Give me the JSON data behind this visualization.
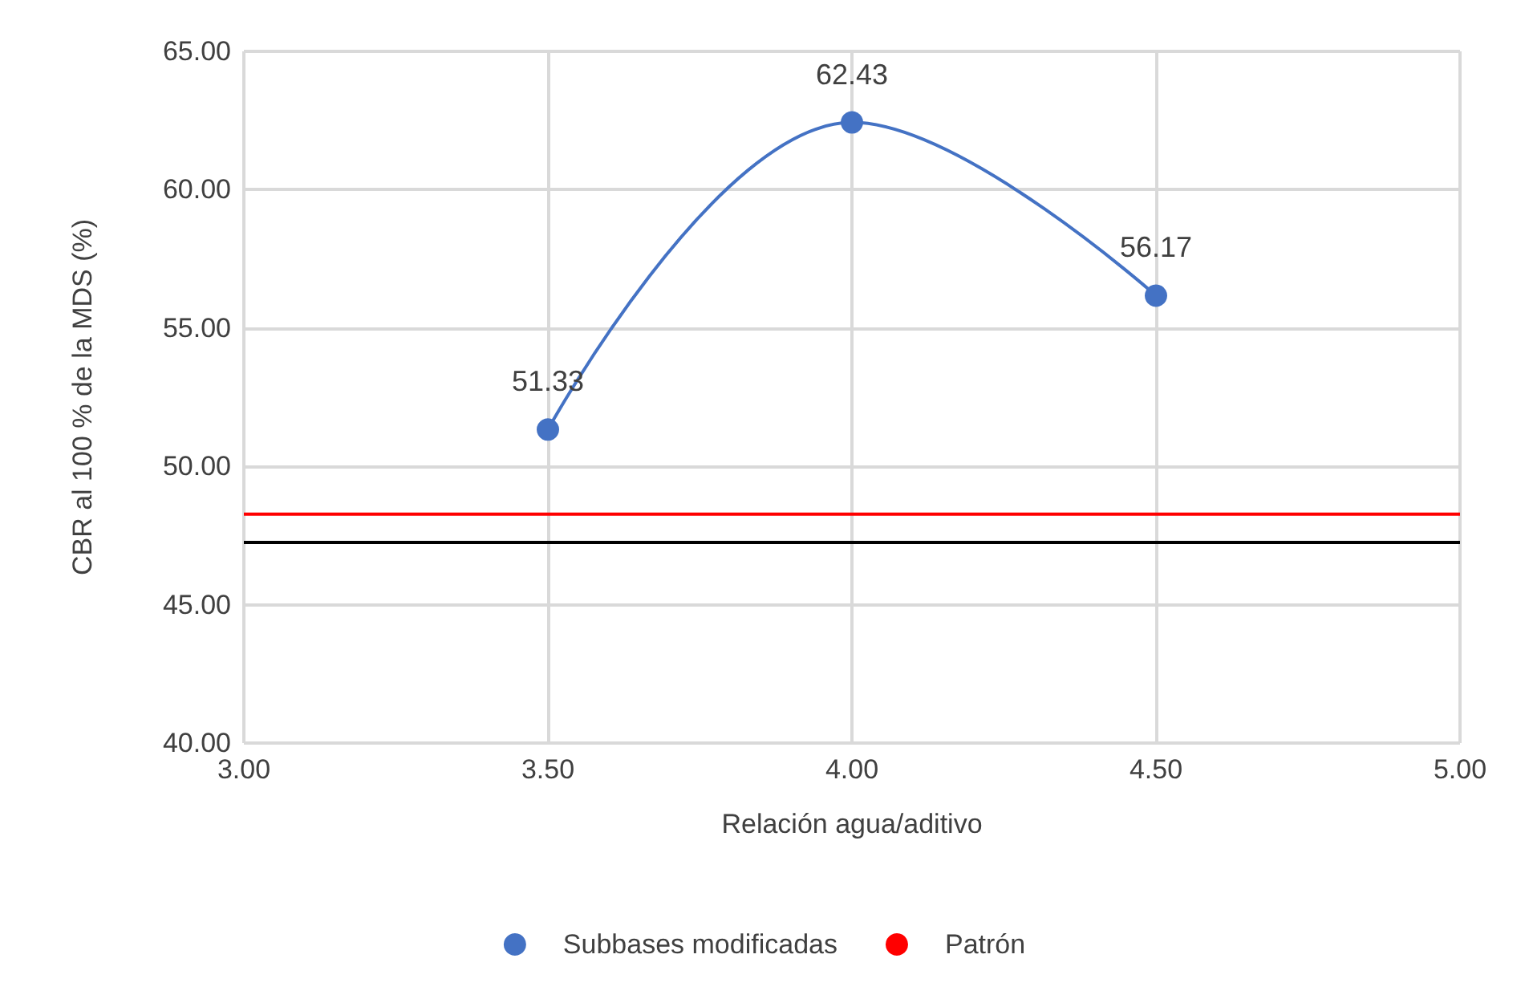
{
  "chart_data": {
    "type": "line",
    "xlabel": "Relación agua/aditivo",
    "ylabel": "CBR al 100 % de la MDS (%)",
    "xlim": [
      3,
      5
    ],
    "xticks": [
      {
        "value": 3,
        "label": "3.00"
      },
      {
        "value": 3.5,
        "label": "3.50"
      },
      {
        "value": 4,
        "label": "4.00"
      },
      {
        "value": 4.5,
        "label": "4.50"
      },
      {
        "value": 5,
        "label": "5.00"
      }
    ],
    "ylim": [
      40,
      65
    ],
    "yticks": [
      {
        "value": 40,
        "label": "40.00"
      },
      {
        "value": 45,
        "label": "45.00"
      },
      {
        "value": 50,
        "label": "50.00"
      },
      {
        "value": 55,
        "label": "55.00"
      },
      {
        "value": 60,
        "label": "60.00"
      },
      {
        "value": 65,
        "label": "65.00"
      }
    ],
    "series": [
      {
        "name": "Subbases modificadas",
        "color": "#4472c4",
        "x": [
          3.5,
          4,
          4.5
        ],
        "values": [
          51.33,
          62.43,
          56.17
        ],
        "data_labels": true,
        "marker": "circle"
      },
      {
        "name": "Patrón",
        "color": "#ff0000",
        "x": [
          3,
          5
        ],
        "values": [
          48.27,
          48.27
        ],
        "marker": "none"
      }
    ],
    "ref_lines": [
      {
        "axis": "y",
        "value": 47.25,
        "color": "#000000"
      }
    ],
    "grid": true,
    "legend": "bottom"
  }
}
